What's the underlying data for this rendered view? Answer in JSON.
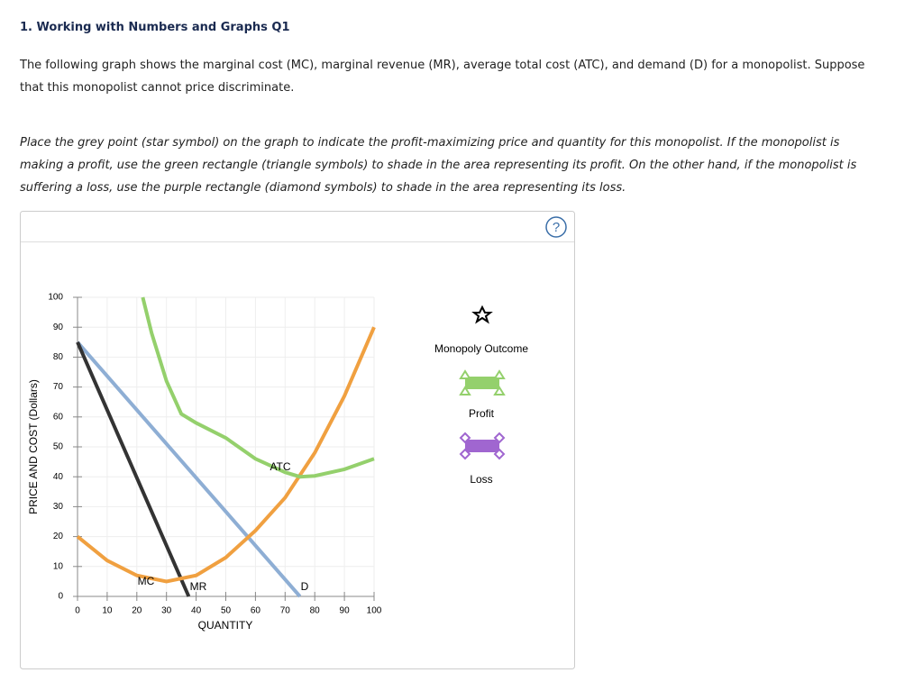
{
  "header": {
    "title": "1. Working with Numbers and Graphs Q1"
  },
  "question": {
    "intro": "The following graph shows the marginal cost (MC), marginal revenue (MR), average total cost (ATC), and demand (D) for a monopolist. Suppose that this monopolist cannot price discriminate.",
    "instructions": "Place the grey point (star symbol) on the graph to indicate the profit-maximizing price and quantity for this monopolist. If the monopolist is making a profit, use the green rectangle (triangle symbols) to shade in the area representing its profit. On the other hand, if the monopolist is suffering a loss, use the purple rectangle (diamond symbols) to shade in the area representing its loss."
  },
  "help": "?",
  "tools": [
    {
      "label": "Monopoly Outcome"
    },
    {
      "label": "Profit"
    },
    {
      "label": "Loss"
    }
  ],
  "chart_data": {
    "type": "line",
    "x_label": "QUANTITY",
    "y_label": "PRICE AND COST (Dollars)",
    "xlim": [
      0,
      100
    ],
    "ylim": [
      0,
      100
    ],
    "xticks": [
      0,
      10,
      20,
      30,
      40,
      50,
      60,
      70,
      80,
      90,
      100
    ],
    "yticks": [
      0,
      10,
      20,
      30,
      40,
      50,
      60,
      70,
      80,
      90,
      100
    ],
    "grid": true,
    "series": [
      {
        "name": "D",
        "color": "#8eaed4",
        "x": [
          0,
          75
        ],
        "values": [
          85,
          0
        ]
      },
      {
        "name": "MR",
        "color": "#333333",
        "x": [
          0,
          37.5
        ],
        "values": [
          85,
          0
        ]
      },
      {
        "name": "MC",
        "color": "#f0a040",
        "x": [
          0,
          10,
          20,
          30,
          40,
          50,
          60,
          70,
          80,
          90,
          100
        ],
        "values": [
          20,
          12,
          7,
          5,
          7,
          13,
          22,
          33,
          48,
          67,
          90
        ]
      },
      {
        "name": "ATC",
        "color": "#94d06c",
        "x": [
          22,
          25,
          30,
          35,
          40,
          50,
          60,
          70,
          75,
          80,
          90,
          100
        ],
        "values": [
          100,
          88,
          72,
          61,
          58,
          53,
          46,
          41.5,
          40,
          40.3,
          42.5,
          46
        ]
      }
    ]
  }
}
